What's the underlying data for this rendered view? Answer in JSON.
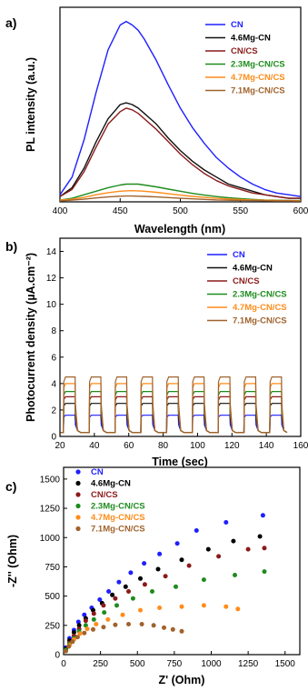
{
  "chart_data": [
    {
      "panel": "a)",
      "type": "line",
      "xlabel": "Wavelength (nm)",
      "ylabel": "PL intensity (a.u.)",
      "xlim": [
        400,
        600
      ],
      "ylim": [
        0,
        1.1
      ],
      "xticks": [
        "400",
        "450",
        "500",
        "550",
        "600"
      ],
      "legend_position": "top-right",
      "x": [
        400,
        410,
        420,
        430,
        440,
        450,
        455,
        460,
        465,
        470,
        480,
        490,
        500,
        510,
        520,
        530,
        540,
        550,
        560,
        570,
        580,
        590,
        600
      ],
      "series": [
        {
          "name": "CN",
          "color": "#1f1fff",
          "values": [
            0.04,
            0.14,
            0.35,
            0.62,
            0.86,
            1.0,
            1.02,
            1.0,
            0.97,
            0.92,
            0.8,
            0.66,
            0.53,
            0.42,
            0.33,
            0.25,
            0.19,
            0.14,
            0.1,
            0.07,
            0.05,
            0.04,
            0.03
          ]
        },
        {
          "name": "4.6Mg-CN",
          "color": "#111111",
          "values": [
            0.03,
            0.08,
            0.19,
            0.34,
            0.47,
            0.55,
            0.56,
            0.55,
            0.53,
            0.5,
            0.44,
            0.36,
            0.29,
            0.23,
            0.18,
            0.14,
            0.1,
            0.08,
            0.06,
            0.04,
            0.03,
            0.02,
            0.02
          ]
        },
        {
          "name": "CN/CS",
          "color": "#8b1a1a",
          "values": [
            0.03,
            0.07,
            0.17,
            0.31,
            0.44,
            0.51,
            0.53,
            0.52,
            0.5,
            0.47,
            0.41,
            0.34,
            0.27,
            0.21,
            0.16,
            0.12,
            0.09,
            0.07,
            0.05,
            0.04,
            0.03,
            0.02,
            0.02
          ]
        },
        {
          "name": "2.3Mg-CN/CS",
          "color": "#1e8c1e",
          "values": [
            0.01,
            0.02,
            0.04,
            0.06,
            0.08,
            0.095,
            0.1,
            0.1,
            0.1,
            0.095,
            0.085,
            0.072,
            0.06,
            0.048,
            0.038,
            0.03,
            0.023,
            0.018,
            0.014,
            0.011,
            0.009,
            0.008,
            0.007
          ]
        },
        {
          "name": "4.7Mg-CN/CS",
          "color": "#ff8c1a",
          "values": [
            0.01,
            0.015,
            0.025,
            0.04,
            0.052,
            0.06,
            0.062,
            0.063,
            0.062,
            0.06,
            0.054,
            0.046,
            0.038,
            0.031,
            0.025,
            0.02,
            0.016,
            0.013,
            0.011,
            0.009,
            0.008,
            0.007,
            0.006
          ]
        },
        {
          "name": "7.1Mg-CN/CS",
          "color": "#a0622d",
          "values": [
            0.005,
            0.01,
            0.015,
            0.022,
            0.028,
            0.032,
            0.033,
            0.033,
            0.032,
            0.031,
            0.028,
            0.024,
            0.02,
            0.017,
            0.014,
            0.011,
            0.009,
            0.008,
            0.007,
            0.006,
            0.005,
            0.005,
            0.004
          ]
        }
      ]
    },
    {
      "panel": "b)",
      "type": "line",
      "xlabel": "Time (sec)",
      "ylabel": "Photocurrent density (µA.cm⁻²)",
      "xlim": [
        20,
        160
      ],
      "ylim": [
        0,
        15
      ],
      "xticks": [
        "20",
        "40",
        "60",
        "80",
        "100",
        "120",
        "140",
        "160"
      ],
      "yticks": [
        "0",
        "2",
        "4",
        "6",
        "8",
        "10",
        "12",
        "14"
      ],
      "legend_position": "top-right",
      "light_on_intervals": [
        [
          22,
          29
        ],
        [
          37,
          44
        ],
        [
          52,
          59
        ],
        [
          67,
          74
        ],
        [
          82,
          89
        ],
        [
          97,
          104
        ],
        [
          112,
          119
        ],
        [
          127,
          134
        ],
        [
          142,
          149
        ]
      ],
      "series": [
        {
          "name": "CN",
          "color": "#1f1fff",
          "plateau": 1.6
        },
        {
          "name": "4.6Mg-CN",
          "color": "#111111",
          "plateau": 2.5
        },
        {
          "name": "CN/CS",
          "color": "#8b1a1a",
          "plateau": 3.0
        },
        {
          "name": "2.3Mg-CN/CS",
          "color": "#1e8c1e",
          "plateau": 3.4
        },
        {
          "name": "4.7Mg-CN/CS",
          "color": "#ff8c1a",
          "plateau": 4.0
        },
        {
          "name": "7.1Mg-CN/CS",
          "color": "#a0622d",
          "plateau": 4.5
        }
      ]
    },
    {
      "panel": "c)",
      "type": "scatter",
      "xlabel": "Z' (Ohm)",
      "ylabel": "-Z'' (Ohm)",
      "xlim": [
        0,
        1600
      ],
      "ylim": [
        0,
        1600
      ],
      "xticks": [
        "0",
        "250",
        "500",
        "750",
        "1000",
        "1250",
        "1500"
      ],
      "yticks": [
        "0",
        "250",
        "500",
        "750",
        "1000",
        "1250",
        "1500"
      ],
      "legend_position": "top-left",
      "series": [
        {
          "name": "CN",
          "color": "#1f1fff",
          "x": [
            15,
            40,
            70,
            100,
            140,
            190,
            245,
            305,
            375,
            455,
            545,
            650,
            770,
            900,
            1100,
            1350
          ],
          "y": [
            60,
            140,
            210,
            280,
            340,
            400,
            470,
            540,
            620,
            700,
            780,
            860,
            950,
            1060,
            1130,
            1190
          ]
        },
        {
          "name": "4.6Mg-CN",
          "color": "#000000",
          "x": [
            15,
            40,
            70,
            105,
            150,
            200,
            260,
            330,
            420,
            520,
            640,
            800,
            980,
            1150,
            1330
          ],
          "y": [
            50,
            120,
            190,
            250,
            310,
            380,
            440,
            510,
            580,
            650,
            730,
            810,
            900,
            970,
            1010
          ]
        },
        {
          "name": "CN/CS",
          "color": "#8b1a1a",
          "x": [
            15,
            40,
            70,
            105,
            150,
            205,
            270,
            350,
            440,
            550,
            690,
            850,
            1050,
            1250,
            1360
          ],
          "y": [
            40,
            100,
            160,
            220,
            290,
            350,
            420,
            480,
            540,
            600,
            670,
            760,
            840,
            900,
            910
          ]
        },
        {
          "name": "2.3Mg-CN/CS",
          "color": "#1e8c1e",
          "x": [
            15,
            40,
            70,
            105,
            150,
            205,
            275,
            360,
            470,
            600,
            760,
            950,
            1160,
            1360
          ],
          "y": [
            40,
            90,
            140,
            200,
            250,
            300,
            360,
            420,
            480,
            540,
            580,
            640,
            680,
            710
          ]
        },
        {
          "name": "4.7Mg-CN/CS",
          "color": "#ff8c1a",
          "x": [
            15,
            40,
            70,
            110,
            160,
            220,
            300,
            400,
            520,
            650,
            800,
            950,
            1100,
            1180
          ],
          "y": [
            30,
            80,
            130,
            180,
            220,
            260,
            300,
            340,
            380,
            400,
            410,
            420,
            410,
            390
          ]
        },
        {
          "name": "7.1Mg-CN/CS",
          "color": "#a0622d",
          "x": [
            15,
            35,
            60,
            95,
            140,
            200,
            270,
            350,
            440,
            530,
            610,
            680,
            740,
            800
          ],
          "y": [
            30,
            70,
            110,
            150,
            185,
            215,
            235,
            255,
            260,
            260,
            250,
            230,
            215,
            200
          ]
        }
      ]
    }
  ]
}
